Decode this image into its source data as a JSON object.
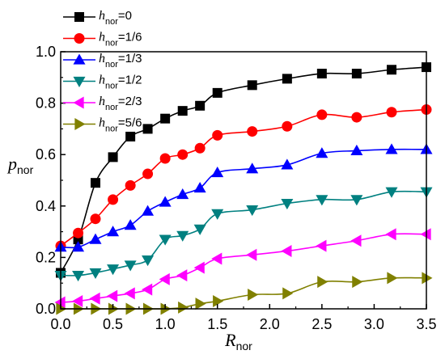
{
  "chart_data": {
    "type": "line",
    "xlabel": {
      "main": "R",
      "sub": "nor"
    },
    "ylabel": {
      "main": "p",
      "sub": "nor"
    },
    "xlim": [
      0,
      3.5
    ],
    "ylim": [
      0,
      1.0
    ],
    "xticks": [
      "0.0",
      "0.5",
      "1.0",
      "1.5",
      "2.0",
      "2.5",
      "3.0",
      "3.5"
    ],
    "yticks": [
      "0.0",
      "0.2",
      "0.4",
      "0.6",
      "0.8",
      "1.0"
    ],
    "grid": false,
    "legend_position": "top-left",
    "x": [
      0.0,
      0.167,
      0.333,
      0.5,
      0.667,
      0.833,
      1.0,
      1.167,
      1.333,
      1.5,
      1.833,
      2.167,
      2.5,
      2.833,
      3.167,
      3.5
    ],
    "series": [
      {
        "name": "h_nor=0",
        "label_main": "h",
        "label_sub": "nor",
        "label_val": "=0",
        "color": "#000000",
        "marker": "square",
        "values": [
          0.14,
          0.27,
          0.49,
          0.59,
          0.67,
          0.7,
          0.74,
          0.77,
          0.79,
          0.84,
          0.87,
          0.895,
          0.915,
          0.915,
          0.93,
          0.94
        ]
      },
      {
        "name": "h_nor=1/6",
        "label_main": "h",
        "label_sub": "nor",
        "label_val": "=1/6",
        "color": "#ff0000",
        "marker": "circle",
        "values": [
          0.245,
          0.295,
          0.35,
          0.425,
          0.48,
          0.525,
          0.585,
          0.6,
          0.625,
          0.675,
          0.69,
          0.71,
          0.755,
          0.745,
          0.765,
          0.775
        ]
      },
      {
        "name": "h_nor=1/3",
        "label_main": "h",
        "label_sub": "nor",
        "label_val": "=1/3",
        "color": "#0000ff",
        "marker": "triangle-up",
        "values": [
          0.24,
          0.24,
          0.27,
          0.3,
          0.325,
          0.38,
          0.415,
          0.445,
          0.47,
          0.53,
          0.545,
          0.56,
          0.605,
          0.615,
          0.62,
          0.62
        ]
      },
      {
        "name": "h_nor=1/2",
        "label_main": "h",
        "label_sub": "nor",
        "label_val": "=1/2",
        "color": "#008080",
        "marker": "triangle-down",
        "values": [
          0.13,
          0.13,
          0.14,
          0.155,
          0.17,
          0.19,
          0.27,
          0.285,
          0.31,
          0.37,
          0.385,
          0.41,
          0.425,
          0.425,
          0.455,
          0.455
        ]
      },
      {
        "name": "h_nor=2/3",
        "label_main": "h",
        "label_sub": "nor",
        "label_val": "=2/3",
        "color": "#ff00ff",
        "marker": "triangle-left",
        "values": [
          0.025,
          0.03,
          0.04,
          0.05,
          0.06,
          0.075,
          0.115,
          0.13,
          0.16,
          0.195,
          0.21,
          0.225,
          0.245,
          0.265,
          0.29,
          0.29
        ]
      },
      {
        "name": "h_nor=5/6",
        "label_main": "h",
        "label_sub": "nor",
        "label_val": "=5/6",
        "color": "#808000",
        "marker": "triangle-right",
        "values": [
          0.0,
          0.0,
          0.0,
          0.0,
          0.0,
          0.0,
          0.0,
          0.005,
          0.02,
          0.03,
          0.055,
          0.06,
          0.105,
          0.105,
          0.12,
          0.12
        ]
      }
    ]
  }
}
